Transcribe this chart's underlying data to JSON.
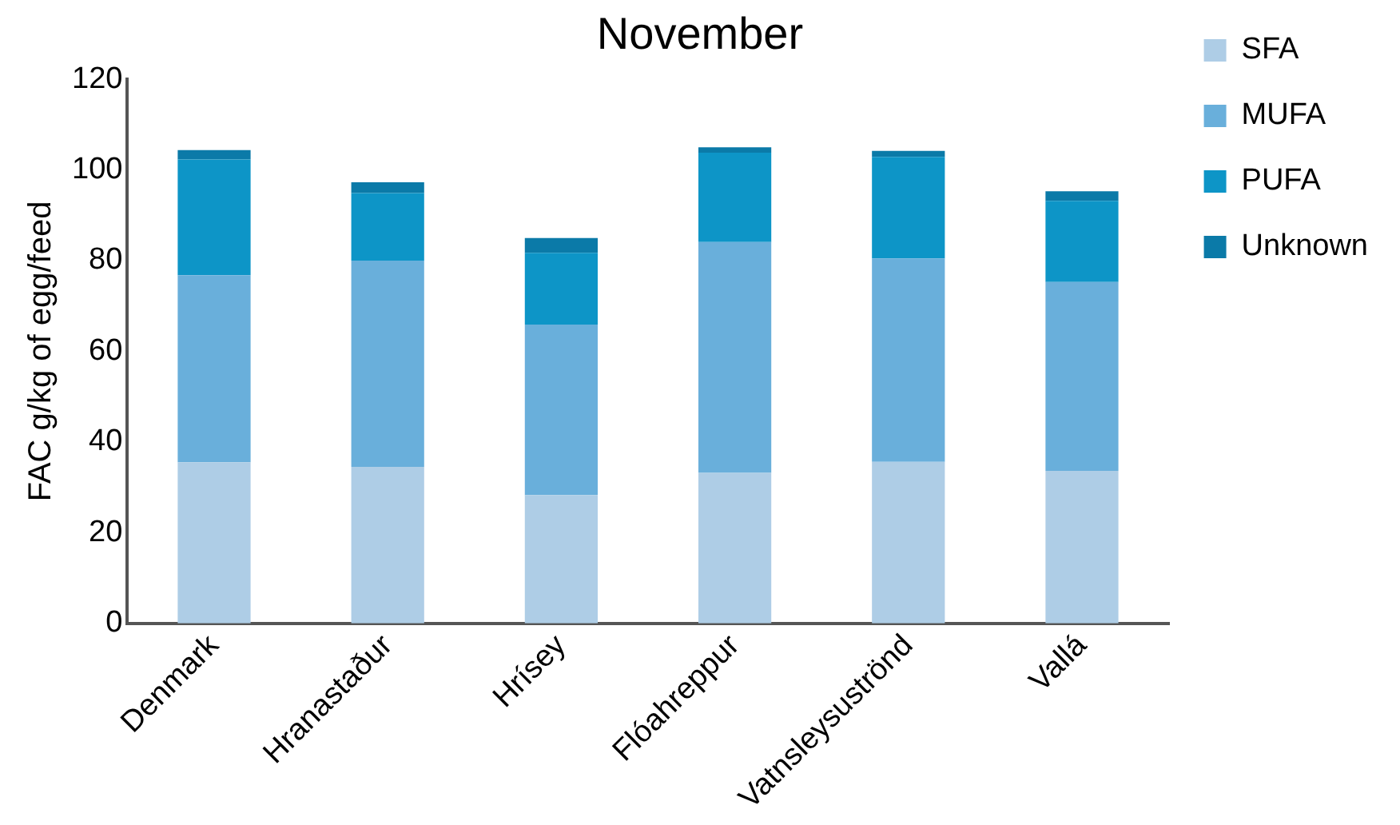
{
  "chart_data": {
    "type": "bar",
    "title": "November",
    "ylabel": "FAC g/kg of egg/feed",
    "stacked": true,
    "legend": "right",
    "grid": false,
    "categories": [
      "Denmark",
      "Hranastaður",
      "Hrísey",
      "Flóahreppur",
      "Vatnsleysuströnd",
      "Vallá"
    ],
    "ylim": [
      0,
      120
    ],
    "yticks": [
      0,
      20,
      40,
      60,
      80,
      100,
      120
    ],
    "series": [
      {
        "name": "SFA",
        "color": "#aecde6",
        "values": [
          35.5,
          34.5,
          28.3,
          33.2,
          35.6,
          33.6
        ]
      },
      {
        "name": "MUFA",
        "color": "#69afdb",
        "values": [
          41.3,
          45.5,
          37.6,
          50.9,
          44.9,
          41.7
        ]
      },
      {
        "name": "PUFA",
        "color": "#0d95c7",
        "values": [
          25.5,
          14.9,
          15.8,
          19.7,
          22.4,
          17.9
        ]
      },
      {
        "name": "Unknown",
        "color": "#0b7aa8",
        "values": [
          2.1,
          2.4,
          3.3,
          1.2,
          1.3,
          2.1
        ]
      }
    ]
  }
}
